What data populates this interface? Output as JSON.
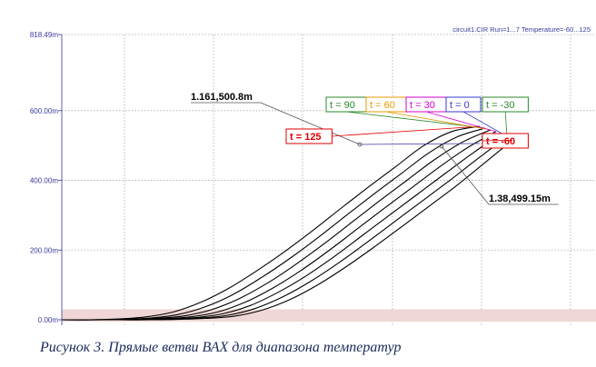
{
  "chart_data": {
    "type": "line",
    "header": "circuit1.CIR Run=1...7 Temperature=-60...125",
    "x": [
      0,
      10,
      20,
      30,
      40,
      50,
      60,
      70,
      80,
      90,
      100,
      110,
      120,
      130,
      140
    ],
    "ylim": [
      0,
      818.49
    ],
    "yticks": [
      {
        "value": 0,
        "label": "0.00m"
      },
      {
        "value": 200,
        "label": "200.00m"
      },
      {
        "value": 400,
        "label": "400.00m"
      },
      {
        "value": 600,
        "label": "600.00m"
      },
      {
        "value": 818.49,
        "label": "818.49m"
      }
    ],
    "series": [
      {
        "name": "t = 125",
        "color": "#e00000",
        "values": [
          0,
          2,
          8,
          22,
          50,
          90,
          140,
          195,
          255,
          318,
          380,
          440,
          500,
          540,
          555
        ]
      },
      {
        "name": "t = 90",
        "color": "#2a8a2a",
        "values": [
          0,
          1,
          5,
          15,
          38,
          74,
          122,
          176,
          235,
          298,
          360,
          420,
          480,
          525,
          550
        ]
      },
      {
        "name": "t = 60",
        "color": "#e89a00",
        "values": [
          0,
          1,
          4,
          11,
          29,
          61,
          105,
          158,
          216,
          278,
          340,
          400,
          460,
          510,
          545
        ]
      },
      {
        "name": "t = 30",
        "color": "#d000d0",
        "values": [
          0,
          1,
          3,
          8,
          22,
          50,
          91,
          141,
          198,
          259,
          320,
          380,
          440,
          495,
          540
        ]
      },
      {
        "name": "t = 0",
        "color": "#3a3ad0",
        "values": [
          0,
          1,
          2,
          6,
          17,
          41,
          79,
          126,
          181,
          241,
          301,
          361,
          421,
          480,
          535
        ]
      },
      {
        "name": "t = -30",
        "color": "#2a8a2a",
        "values": [
          0,
          0,
          2,
          5,
          13,
          33,
          67,
          112,
          165,
          223,
          283,
          343,
          403,
          465,
          525
        ]
      },
      {
        "name": "t = -60",
        "color": "#e00000",
        "values": [
          0,
          0,
          1,
          4,
          10,
          27,
          57,
          99,
          150,
          206,
          265,
          325,
          385,
          450,
          515
        ]
      }
    ],
    "annotations": [
      {
        "text": "1.161,500.8m",
        "x": 102,
        "y": 500.8
      },
      {
        "text": "1.38,499.15m",
        "x": 121,
        "y": 499.15
      }
    ],
    "grid": true,
    "highlight_band": [
      0,
      30
    ]
  },
  "caption": "Рисунок 3. Прямые ветви ВАХ для диапазона температур"
}
